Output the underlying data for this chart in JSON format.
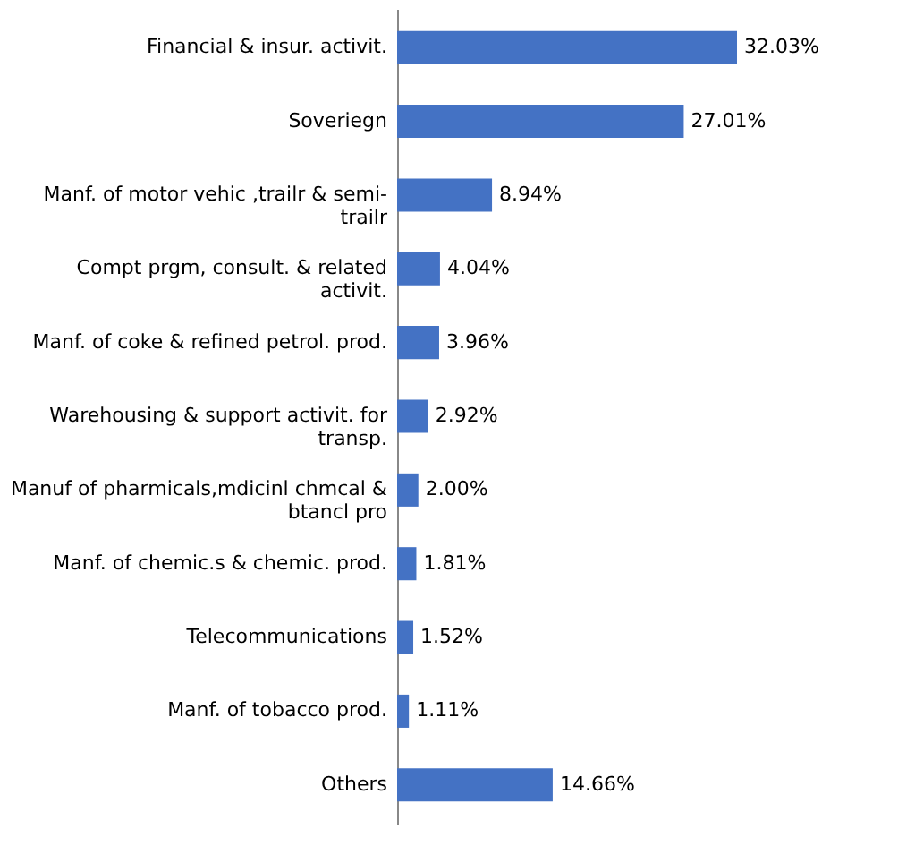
{
  "chart_data": {
    "type": "bar",
    "orientation": "horizontal",
    "categories": [
      "Financial & insur. activit.",
      "Soveriegn",
      "Manf. of motor vehic ,trailr & semi-trailr",
      "Compt prgm, consult. & related activit.",
      "Manf. of coke & refined petrol. prod.",
      "Warehousing & support activit. for transp.",
      "Manuf of pharmicals,mdicinl chmcal & btancl pro",
      "Manf. of chemic.s & chemic. prod.",
      "Telecommunications",
      "Manf. of tobacco prod.",
      "Others"
    ],
    "values": [
      32.03,
      27.01,
      8.94,
      4.04,
      3.96,
      2.92,
      2.0,
      1.81,
      1.52,
      1.11,
      14.66
    ],
    "value_labels": [
      "32.03%",
      "27.01%",
      "8.94%",
      "4.04%",
      "3.96%",
      "2.92%",
      "2.00%",
      "1.81%",
      "1.52%",
      "1.11%",
      "14.66%"
    ],
    "color": "#4472c4",
    "grid": false
  }
}
